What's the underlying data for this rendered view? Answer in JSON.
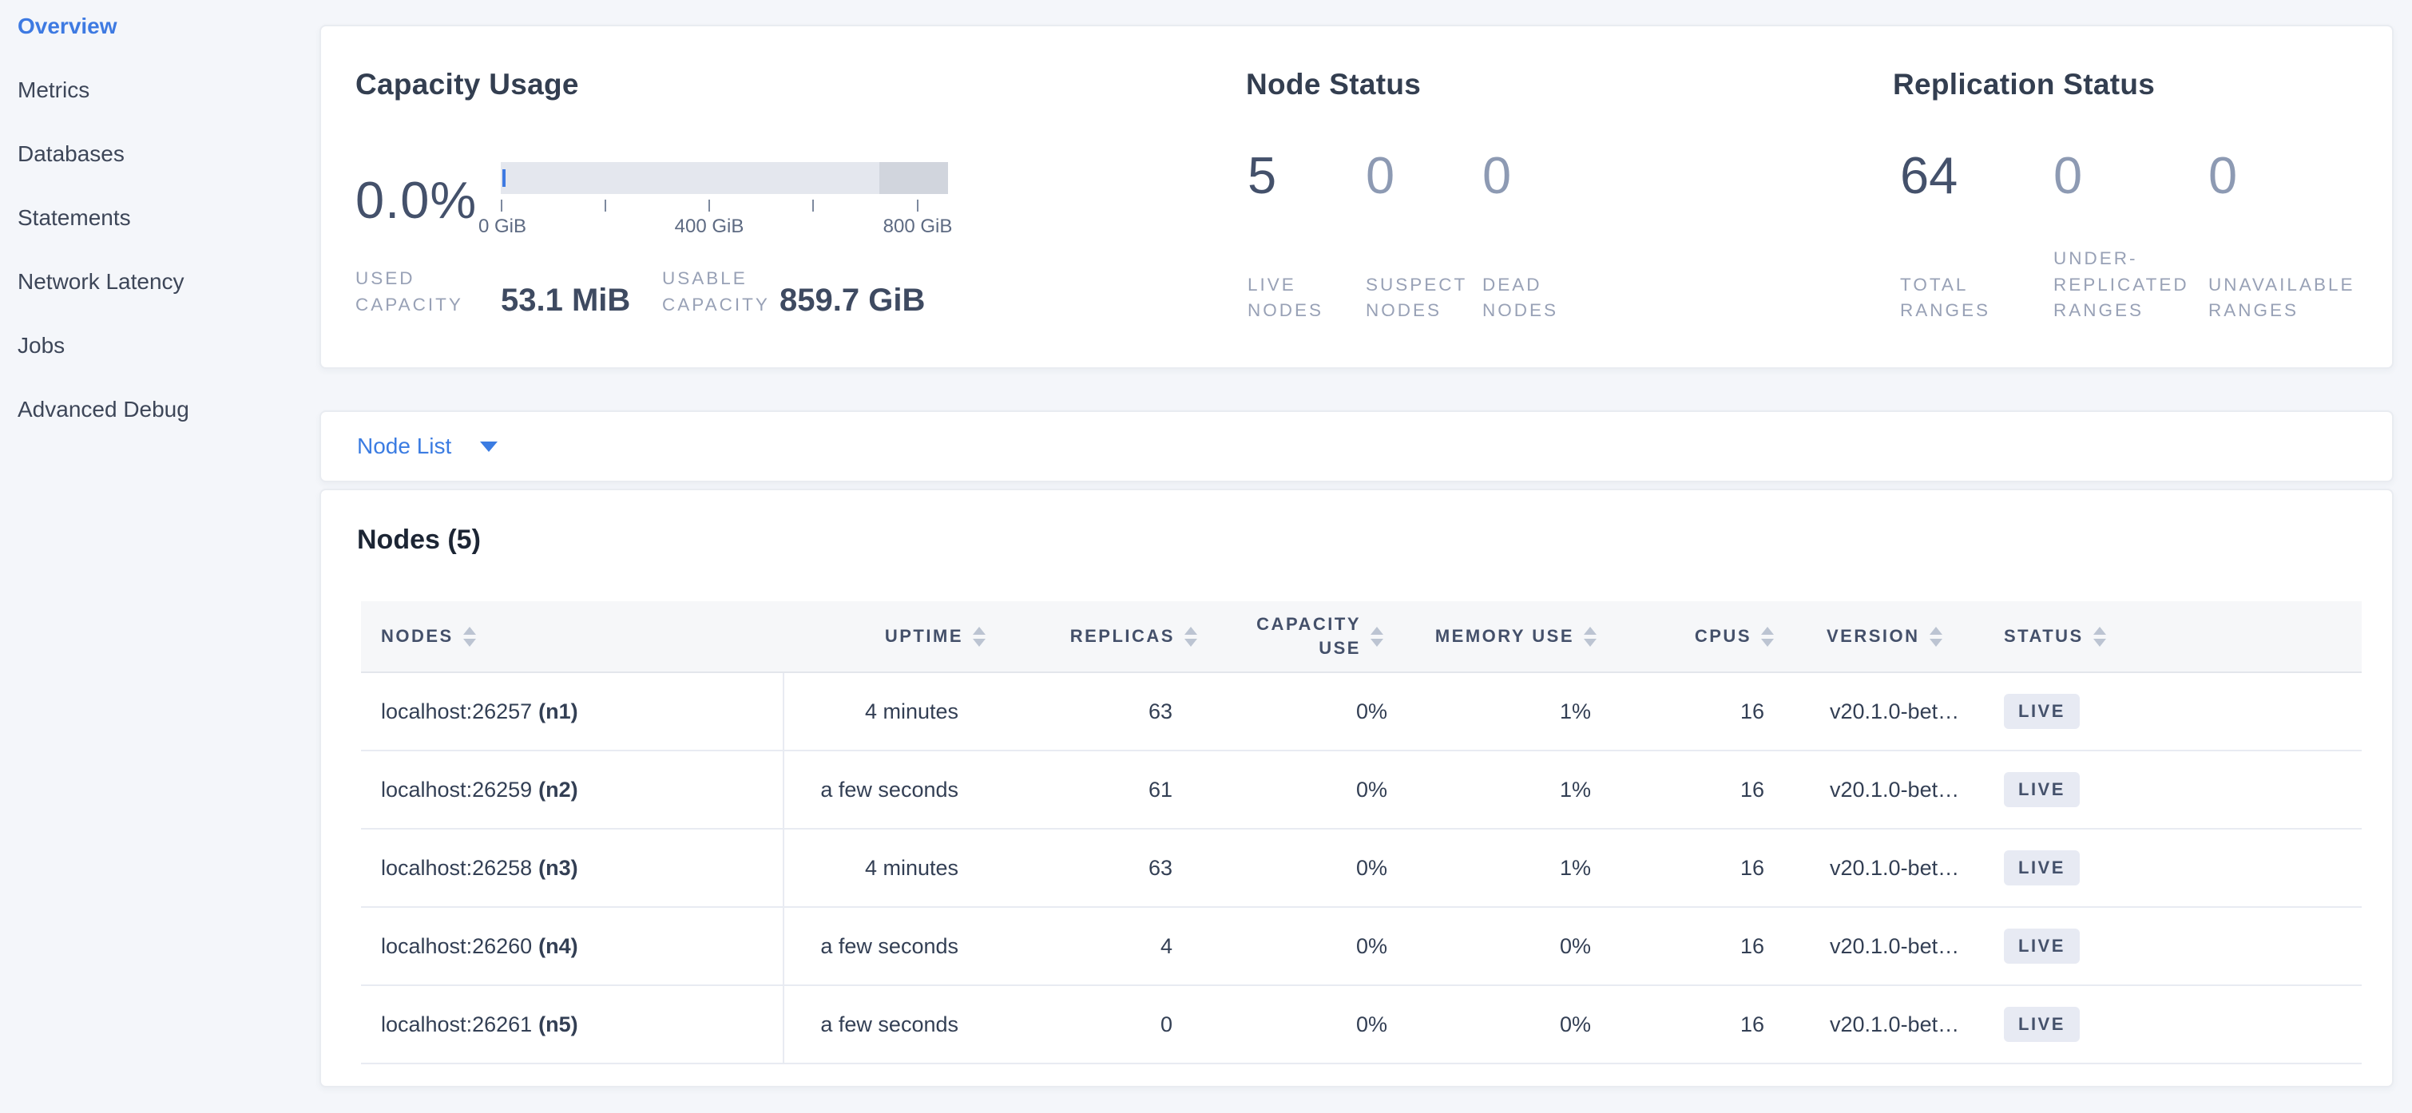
{
  "colors": {
    "accent_blue": "#3e7ae2",
    "page_bg": "#f4f6fa",
    "gauge_bg": "#e4e7ee",
    "gauge_dark_segment": "#d1d5dd",
    "badge_bg": "#e7eaf3",
    "stat_dark": "#44516b",
    "stat_light": "#8d9ab3"
  },
  "sidebar": {
    "items": [
      {
        "label": "Overview",
        "active": true
      },
      {
        "label": "Metrics",
        "active": false
      },
      {
        "label": "Databases",
        "active": false
      },
      {
        "label": "Statements",
        "active": false
      },
      {
        "label": "Network Latency",
        "active": false
      },
      {
        "label": "Jobs",
        "active": false
      },
      {
        "label": "Advanced Debug",
        "active": false
      }
    ]
  },
  "capacity": {
    "title": "Capacity Usage",
    "percent": "0.0%",
    "gauge": {
      "tick_labels": [
        "0 GiB",
        "400 GiB",
        "800 GiB"
      ],
      "axis_max_gib": 860,
      "dark_segment_start_pct": 84.7
    },
    "used": {
      "label": "USED CAPACITY",
      "value": "53.1 MiB"
    },
    "usable": {
      "label": "USABLE CAPACITY",
      "value": "859.7 GiB"
    }
  },
  "node_status": {
    "title": "Node Status",
    "stats": [
      {
        "value": "5",
        "label": "LIVE NODES"
      },
      {
        "value": "0",
        "label": "SUSPECT NODES"
      },
      {
        "value": "0",
        "label": "DEAD NODES"
      }
    ]
  },
  "replication": {
    "title": "Replication Status",
    "stats": [
      {
        "value": "64",
        "label": "TOTAL RANGES"
      },
      {
        "value": "0",
        "label": "UNDER-REPLICATED RANGES"
      },
      {
        "value": "0",
        "label": "UNAVAILABLE RANGES"
      }
    ]
  },
  "node_list": {
    "label": "Node List"
  },
  "nodes_table": {
    "title": "Nodes (5)",
    "columns": [
      "NODES",
      "UPTIME",
      "REPLICAS",
      "CAPACITY USE",
      "MEMORY USE",
      "CPUS",
      "VERSION",
      "STATUS"
    ],
    "rows": [
      {
        "address": "localhost:26257",
        "id": "(n1)",
        "uptime": "4 minutes",
        "replicas": "63",
        "capacity_use": "0%",
        "memory_use": "1%",
        "cpus": "16",
        "version": "v20.1.0-bet…",
        "status": "LIVE"
      },
      {
        "address": "localhost:26259",
        "id": "(n2)",
        "uptime": "a few seconds",
        "replicas": "61",
        "capacity_use": "0%",
        "memory_use": "1%",
        "cpus": "16",
        "version": "v20.1.0-bet…",
        "status": "LIVE"
      },
      {
        "address": "localhost:26258",
        "id": "(n3)",
        "uptime": "4 minutes",
        "replicas": "63",
        "capacity_use": "0%",
        "memory_use": "1%",
        "cpus": "16",
        "version": "v20.1.0-bet…",
        "status": "LIVE"
      },
      {
        "address": "localhost:26260",
        "id": "(n4)",
        "uptime": "a few seconds",
        "replicas": "4",
        "capacity_use": "0%",
        "memory_use": "0%",
        "cpus": "16",
        "version": "v20.1.0-bet…",
        "status": "LIVE"
      },
      {
        "address": "localhost:26261",
        "id": "(n5)",
        "uptime": "a few seconds",
        "replicas": "0",
        "capacity_use": "0%",
        "memory_use": "0%",
        "cpus": "16",
        "version": "v20.1.0-bet…",
        "status": "LIVE"
      }
    ]
  }
}
